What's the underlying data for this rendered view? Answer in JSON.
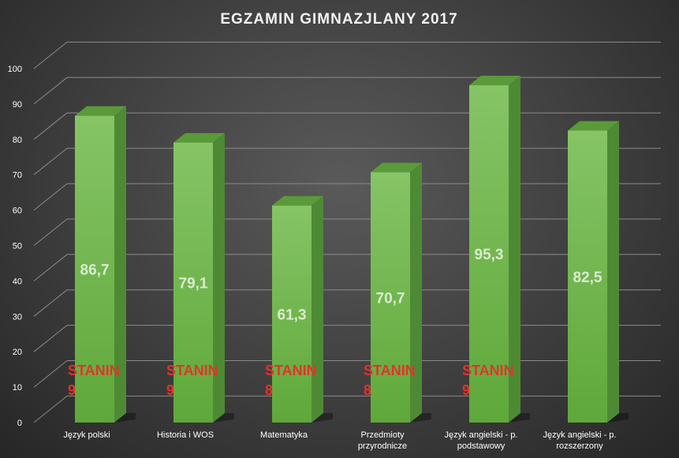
{
  "chart_data": {
    "type": "bar",
    "title": "EGZAMIN  GIMNAZJLANY  2017",
    "categories": [
      [
        "Język polski"
      ],
      [
        "Historia i WOS"
      ],
      [
        "Matematyka"
      ],
      [
        "Przedmioty",
        "przyrodnicze"
      ],
      [
        "Język angielski - p.",
        "podstawowy"
      ],
      [
        "Język angielski - p.",
        "rozszerzony"
      ]
    ],
    "values": [
      86.7,
      79.1,
      61.3,
      70.7,
      95.3,
      82.5
    ],
    "value_labels": [
      "86,7",
      "79,1",
      "61,3",
      "70,7",
      "95,3",
      "82,5"
    ],
    "stanin_labels": [
      [
        "STANIN",
        "9"
      ],
      [
        "STANIN",
        "9"
      ],
      [
        "STANIN",
        "8"
      ],
      [
        "STANIN",
        "8"
      ],
      [
        "STANIN",
        "9"
      ],
      null
    ],
    "ylim": [
      0,
      100
    ],
    "yticks": [
      0,
      10,
      20,
      30,
      40,
      50,
      60,
      70,
      80,
      90,
      100
    ],
    "grid": true,
    "colors": {
      "bar_front": "#6fb548",
      "bar_front_top": "#86c466",
      "bar_side": "#4e8a33",
      "bar_top": "#5a9a3a",
      "grid": "#8a8a8a",
      "stanin_text": "#e8312a",
      "value_text": "#d9ecd0"
    }
  }
}
